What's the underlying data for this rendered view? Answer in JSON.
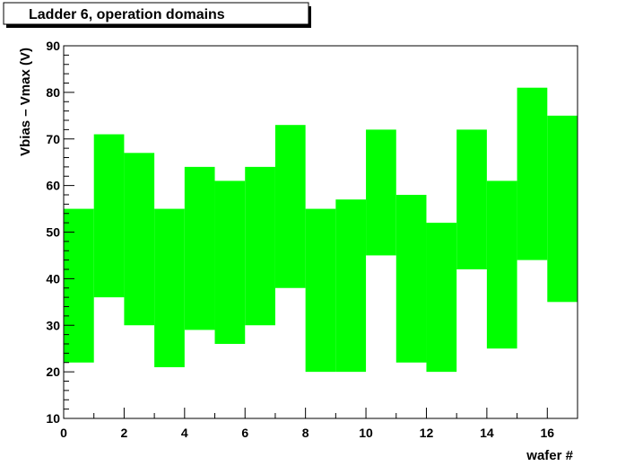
{
  "chart_data": {
    "type": "bar",
    "title": "Ladder  6, operation domains",
    "xlabel": "wafer #",
    "ylabel": "Vbias – Vmax (V)",
    "xlim": [
      0,
      17
    ],
    "ylim": [
      10,
      90
    ],
    "x_ticks": [
      0,
      2,
      4,
      6,
      8,
      10,
      12,
      14,
      16
    ],
    "y_ticks": [
      10,
      20,
      30,
      40,
      50,
      60,
      70,
      80,
      90
    ],
    "grid": false,
    "bar_color": "#00ff00",
    "bins": [
      {
        "wafer": 0,
        "low": 22,
        "high": 55
      },
      {
        "wafer": 1,
        "low": 36,
        "high": 71
      },
      {
        "wafer": 2,
        "low": 30,
        "high": 67
      },
      {
        "wafer": 3,
        "low": 21,
        "high": 55
      },
      {
        "wafer": 4,
        "low": 29,
        "high": 64
      },
      {
        "wafer": 5,
        "low": 26,
        "high": 61
      },
      {
        "wafer": 6,
        "low": 30,
        "high": 64
      },
      {
        "wafer": 7,
        "low": 38,
        "high": 73
      },
      {
        "wafer": 8,
        "low": 20,
        "high": 55
      },
      {
        "wafer": 9,
        "low": 20,
        "high": 57
      },
      {
        "wafer": 10,
        "low": 45,
        "high": 72
      },
      {
        "wafer": 11,
        "low": 22,
        "high": 58
      },
      {
        "wafer": 12,
        "low": 20,
        "high": 52
      },
      {
        "wafer": 13,
        "low": 42,
        "high": 72
      },
      {
        "wafer": 14,
        "low": 25,
        "high": 61
      },
      {
        "wafer": 15,
        "low": 44,
        "high": 81
      },
      {
        "wafer": 16,
        "low": 35,
        "high": 75
      }
    ]
  }
}
